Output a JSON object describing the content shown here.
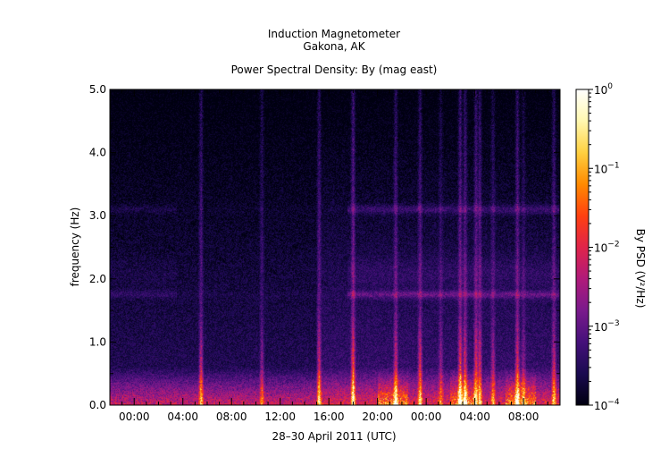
{
  "chart_data": {
    "type": "heatmap",
    "title_lines": [
      "Induction Magnetometer",
      "Gakona, AK"
    ],
    "subtitle": "Power Spectral Density: By (mag east)",
    "xlabel": "28–30 April 2011 (UTC)",
    "ylabel": "frequency (Hz)",
    "colorbar_label": "By PSD (V²/Hz)",
    "x_ticks": [
      "00:00",
      "04:00",
      "08:00",
      "12:00",
      "16:00",
      "20:00",
      "00:00",
      "04:00",
      "08:00"
    ],
    "x_range_hours": [
      -2,
      35
    ],
    "ylim": [
      0,
      5
    ],
    "y_ticks": [
      "0.0",
      "1.0",
      "2.0",
      "3.0",
      "4.0",
      "5.0"
    ],
    "colorbar_scale": "log",
    "colorbar_range": [
      0.0001,
      1
    ],
    "colorbar_ticks": [
      {
        "base": "10",
        "exp": "0"
      },
      {
        "base": "10",
        "exp": "−1"
      },
      {
        "base": "10",
        "exp": "−2"
      },
      {
        "base": "10",
        "exp": "−3"
      },
      {
        "base": "10",
        "exp": "−4"
      }
    ],
    "colormap": [
      "#000010",
      "#1a0a50",
      "#45107a",
      "#7a1a8c",
      "#b01a7a",
      "#e0244a",
      "#ff4010",
      "#ff8a00",
      "#ffd040",
      "#fff8b0",
      "#ffffff"
    ],
    "features": {
      "background_log_psd": -3.6,
      "resonance_bands_hz": [
        1.75,
        3.1,
        2.1
      ],
      "low_freq_enhancement_hz": [
        0,
        0.6
      ],
      "broadband_spike_hours": [
        5.5,
        10.5,
        15.2,
        18.0,
        21.5,
        23.5,
        25.2,
        26.8,
        27.2,
        28.1,
        28.4,
        29.5,
        31.5,
        32.0,
        34.5
      ]
    }
  }
}
